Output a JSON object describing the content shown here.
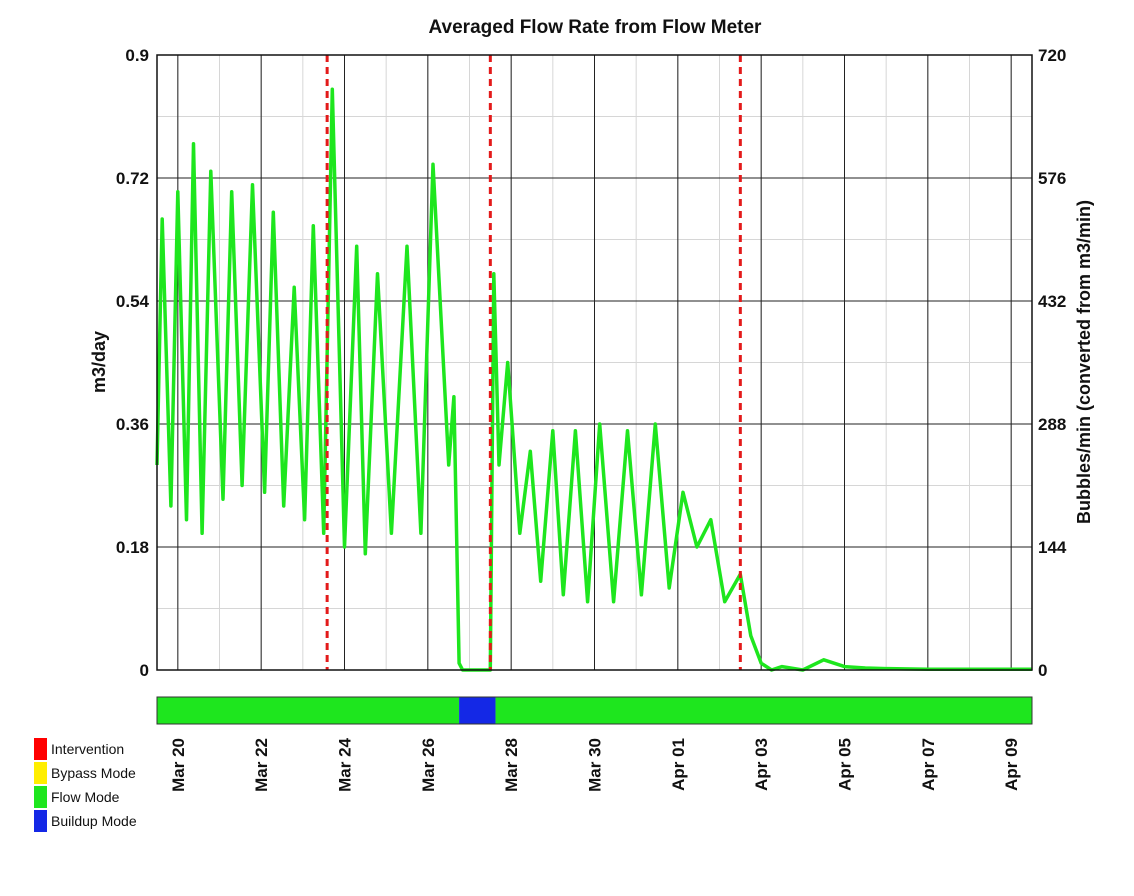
{
  "chart_data": {
    "type": "line",
    "title": "Averaged Flow Rate from Flow Meter",
    "ylabel": "m3/day",
    "ylabel_right": "Bubbles/min (converted from m3/min)",
    "ylim": [
      0,
      0.9
    ],
    "ylim_right": [
      0,
      720
    ],
    "yticks": [
      "0",
      "0.18",
      "0.36",
      "0.54",
      "0.72",
      "0.9"
    ],
    "yticks_right": [
      "0",
      "144",
      "288",
      "432",
      "576",
      "720"
    ],
    "xlim": [
      "2014-03-19T12:00",
      "2014-04-09T12:00"
    ],
    "xticks": [
      {
        "date": "2014-03-20",
        "label": "Mar 20"
      },
      {
        "date": "2014-03-22",
        "label": "Mar 22"
      },
      {
        "date": "2014-03-24",
        "label": "Mar 24"
      },
      {
        "date": "2014-03-26",
        "label": "Mar 26"
      },
      {
        "date": "2014-03-28",
        "label": "Mar 28"
      },
      {
        "date": "2014-03-30",
        "label": "Mar 30"
      },
      {
        "date": "2014-04-01",
        "label": "Apr 01"
      },
      {
        "date": "2014-04-03",
        "label": "Apr 03"
      },
      {
        "date": "2014-04-05",
        "label": "Apr 05"
      },
      {
        "date": "2014-04-07",
        "label": "Apr 07"
      },
      {
        "date": "2014-04-09",
        "label": "Apr 09"
      }
    ],
    "grid": true,
    "interventions": [
      "2014-03-23T14:00",
      "2014-03-27T12:00",
      "2014-04-02T12:00"
    ],
    "series_color": "#1ee61e",
    "intervention_color": "#e31a1a",
    "series": [
      {
        "x": [
          "2014-03-19T12:00",
          "2014-03-19T15:00",
          "2014-03-19T20:00",
          "2014-03-20T00:00",
          "2014-03-20T05:00",
          "2014-03-20T09:00",
          "2014-03-20T14:00",
          "2014-03-20T19:00",
          "2014-03-21T02:00",
          "2014-03-21T07:00",
          "2014-03-21T13:00",
          "2014-03-21T19:00",
          "2014-03-22T02:00",
          "2014-03-22T07:00",
          "2014-03-22T13:00",
          "2014-03-22T19:00",
          "2014-03-23T01:00",
          "2014-03-23T06:00",
          "2014-03-23T12:00",
          "2014-03-23T17:00",
          "2014-03-24T00:00",
          "2014-03-24T07:00",
          "2014-03-24T12:00",
          "2014-03-24T19:00",
          "2014-03-25T03:00",
          "2014-03-25T12:00",
          "2014-03-25T20:00",
          "2014-03-26T03:00",
          "2014-03-26T12:00",
          "2014-03-26T15:00",
          "2014-03-26T18:00",
          "2014-03-26T20:00",
          "2014-03-27T12:00",
          "2014-03-27T14:00",
          "2014-03-27T17:00",
          "2014-03-27T22:00",
          "2014-03-28T05:00",
          "2014-03-28T11:00",
          "2014-03-28T17:00",
          "2014-03-29T00:00",
          "2014-03-29T06:00",
          "2014-03-29T13:00",
          "2014-03-29T20:00",
          "2014-03-30T03:00",
          "2014-03-30T11:00",
          "2014-03-30T19:00",
          "2014-03-31T03:00",
          "2014-03-31T11:00",
          "2014-03-31T19:00",
          "2014-04-01T03:00",
          "2014-04-01T11:00",
          "2014-04-01T19:00",
          "2014-04-02T03:00",
          "2014-04-02T12:00",
          "2014-04-02T18:00",
          "2014-04-03T00:00",
          "2014-04-03T06:00",
          "2014-04-03T12:00",
          "2014-04-04T00:00",
          "2014-04-04T12:00",
          "2014-04-05T00:00",
          "2014-04-05T12:00",
          "2014-04-06T00:00",
          "2014-04-07T00:00",
          "2014-04-08T00:00",
          "2014-04-09T12:00"
        ],
        "y": [
          0.3,
          0.66,
          0.24,
          0.7,
          0.22,
          0.77,
          0.2,
          0.73,
          0.25,
          0.7,
          0.27,
          0.71,
          0.26,
          0.67,
          0.24,
          0.56,
          0.22,
          0.65,
          0.2,
          0.85,
          0.18,
          0.62,
          0.17,
          0.58,
          0.2,
          0.62,
          0.2,
          0.74,
          0.3,
          0.4,
          0.01,
          0.0,
          0.0,
          0.58,
          0.3,
          0.45,
          0.2,
          0.32,
          0.13,
          0.35,
          0.11,
          0.35,
          0.1,
          0.36,
          0.1,
          0.35,
          0.11,
          0.36,
          0.12,
          0.26,
          0.18,
          0.22,
          0.1,
          0.14,
          0.05,
          0.01,
          0.0,
          0.005,
          0.0,
          0.015,
          0.005,
          0.003,
          0.002,
          0.001,
          0.001,
          0.001
        ]
      }
    ]
  },
  "mode_bar": [
    {
      "mode": "Flow Mode",
      "from": "2014-03-19T12:00",
      "to": "2014-03-26T18:00"
    },
    {
      "mode": "Buildup Mode",
      "from": "2014-03-26T18:00",
      "to": "2014-03-27T15:00"
    },
    {
      "mode": "Flow Mode",
      "from": "2014-03-27T15:00",
      "to": "2014-04-09T12:00"
    }
  ],
  "legend": {
    "position": "bottom-left",
    "items": [
      {
        "label": "Intervention",
        "color": "#ff0000"
      },
      {
        "label": "Bypass Mode",
        "color": "#ffee00"
      },
      {
        "label": "Flow Mode",
        "color": "#1ee61e"
      },
      {
        "label": "Buildup Mode",
        "color": "#1428e6"
      }
    ]
  }
}
